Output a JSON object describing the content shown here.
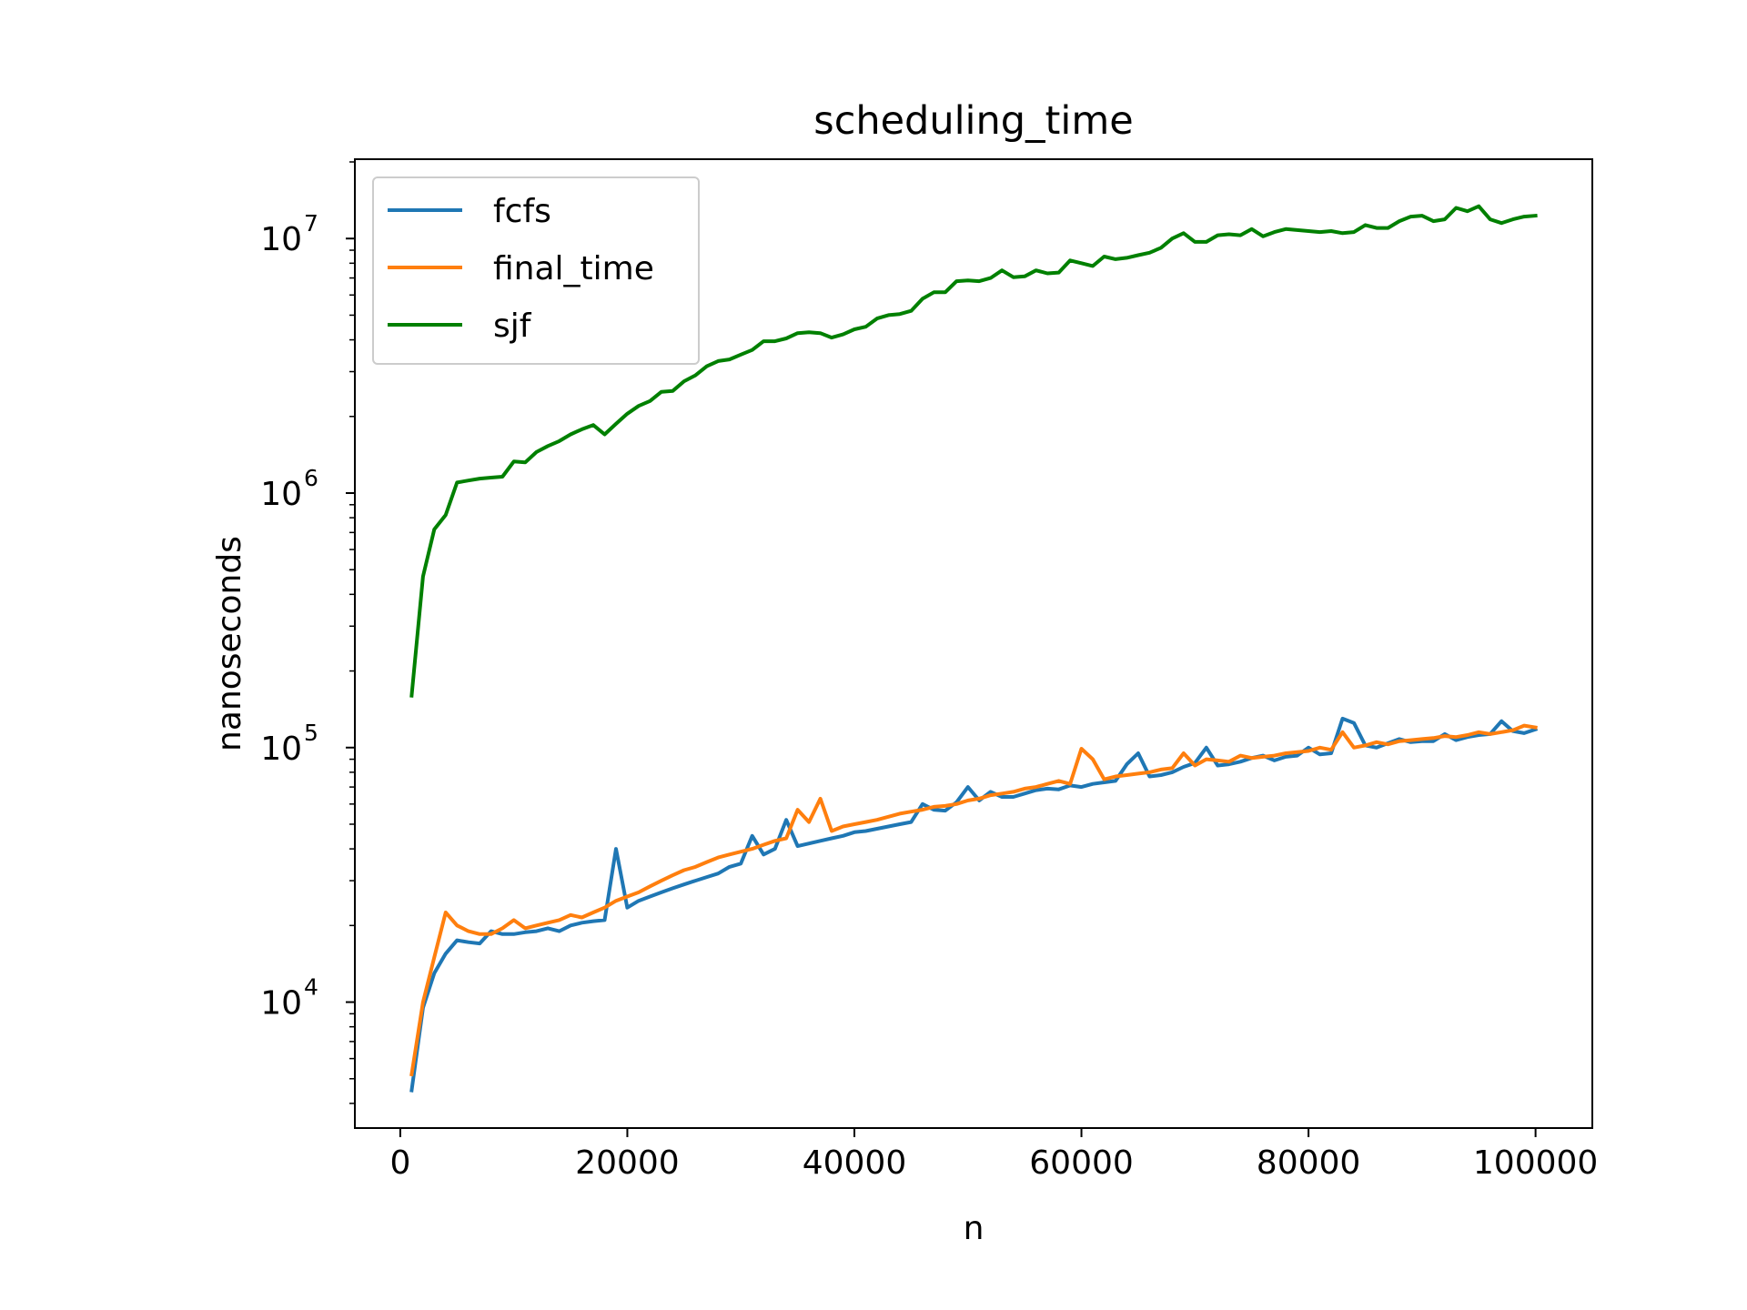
{
  "chart_data": {
    "type": "line",
    "title": "scheduling_time",
    "xlabel": "n",
    "ylabel": "nanoseconds",
    "yscale": "log",
    "xlim": [
      -4000,
      105000
    ],
    "ylim": [
      3200,
      20500000
    ],
    "grid": false,
    "legend_position": "top-left",
    "x_ticks": [
      {
        "value": 0,
        "label": "0"
      },
      {
        "value": 20000,
        "label": "20000"
      },
      {
        "value": 40000,
        "label": "40000"
      },
      {
        "value": 60000,
        "label": "60000"
      },
      {
        "value": 80000,
        "label": "80000"
      },
      {
        "value": 100000,
        "label": "100000"
      }
    ],
    "y_ticks": [
      {
        "value": 10000,
        "base": "10",
        "exp": "4"
      },
      {
        "value": 100000,
        "base": "10",
        "exp": "5"
      },
      {
        "value": 1000000,
        "base": "10",
        "exp": "6"
      },
      {
        "value": 10000000,
        "base": "10",
        "exp": "7"
      }
    ],
    "x": [
      1000,
      2000,
      3000,
      4000,
      5000,
      6000,
      7000,
      8000,
      9000,
      10000,
      11000,
      12000,
      13000,
      14000,
      15000,
      16000,
      17000,
      18000,
      19000,
      20000,
      21000,
      22000,
      23000,
      24000,
      25000,
      26000,
      27000,
      28000,
      29000,
      30000,
      31000,
      32000,
      33000,
      34000,
      35000,
      36000,
      37000,
      38000,
      39000,
      40000,
      41000,
      42000,
      43000,
      44000,
      45000,
      46000,
      47000,
      48000,
      49000,
      50000,
      51000,
      52000,
      53000,
      54000,
      55000,
      56000,
      57000,
      58000,
      59000,
      60000,
      61000,
      62000,
      63000,
      64000,
      65000,
      66000,
      67000,
      68000,
      69000,
      70000,
      71000,
      72000,
      73000,
      74000,
      75000,
      76000,
      77000,
      78000,
      79000,
      80000,
      81000,
      82000,
      83000,
      84000,
      85000,
      86000,
      87000,
      88000,
      89000,
      90000,
      91000,
      92000,
      93000,
      94000,
      95000,
      96000,
      97000,
      98000,
      99000,
      100000
    ],
    "series": [
      {
        "name": "fcfs",
        "color": "#1f77b4",
        "values": [
          4500,
          9500,
          13000,
          15500,
          17500,
          17200,
          17000,
          19000,
          18500,
          18500,
          18800,
          19000,
          19500,
          19000,
          20000,
          20500,
          20800,
          21000,
          40000,
          23500,
          25000,
          26000,
          27000,
          28000,
          29000,
          30000,
          31000,
          32000,
          34000,
          35000,
          45000,
          38000,
          40000,
          52000,
          41000,
          42000,
          43000,
          44000,
          45000,
          46500,
          47000,
          48000,
          49000,
          50000,
          51000,
          60000,
          57000,
          56500,
          61000,
          70000,
          62000,
          67000,
          64000,
          64000,
          66000,
          68000,
          69000,
          68500,
          71000,
          70000,
          72000,
          73000,
          74000,
          86000,
          95000,
          77000,
          78000,
          80000,
          84000,
          87000,
          100000,
          85000,
          86000,
          88000,
          91000,
          93000,
          89000,
          92000,
          93000,
          100000,
          94000,
          95000,
          130000,
          125000,
          102000,
          100000,
          104000,
          108000,
          105000,
          106000,
          106000,
          113000,
          107000,
          110000,
          112000,
          113000,
          127000,
          116000,
          114000,
          118000
        ]
      },
      {
        "name": "final_time",
        "color": "#ff7f0e",
        "values": [
          5200,
          10000,
          15000,
          22500,
          20000,
          19000,
          18500,
          18500,
          19500,
          21000,
          19500,
          20000,
          20500,
          21000,
          22000,
          21500,
          22500,
          23500,
          25000,
          26000,
          27000,
          28500,
          30000,
          31500,
          33000,
          34000,
          35500,
          37000,
          38000,
          39000,
          40000,
          41500,
          43000,
          44000,
          57000,
          51000,
          63000,
          47000,
          49000,
          50000,
          51000,
          52000,
          53500,
          55000,
          56000,
          57000,
          58500,
          59000,
          60000,
          62000,
          63000,
          65000,
          66000,
          67000,
          69000,
          70000,
          72000,
          74000,
          72000,
          99000,
          90000,
          75000,
          77000,
          78000,
          79000,
          80000,
          82000,
          83000,
          95000,
          85000,
          90000,
          89000,
          88000,
          93000,
          91000,
          92000,
          93000,
          95000,
          96000,
          97000,
          100000,
          98000,
          115000,
          100000,
          102000,
          105000,
          103000,
          106000,
          107000,
          108000,
          109000,
          111000,
          110000,
          112000,
          115000,
          113000,
          115000,
          117000,
          122000,
          120000
        ]
      },
      {
        "name": "sjf",
        "color": "#008000",
        "values": [
          160000,
          470000,
          720000,
          820000,
          1100000,
          1120000,
          1140000,
          1150000,
          1160000,
          1330000,
          1320000,
          1450000,
          1530000,
          1600000,
          1700000,
          1780000,
          1850000,
          1700000,
          1870000,
          2050000,
          2200000,
          2300000,
          2500000,
          2520000,
          2750000,
          2900000,
          3150000,
          3300000,
          3350000,
          3500000,
          3650000,
          3950000,
          3950000,
          4050000,
          4250000,
          4280000,
          4250000,
          4080000,
          4200000,
          4400000,
          4500000,
          4850000,
          5000000,
          5050000,
          5200000,
          5800000,
          6150000,
          6150000,
          6800000,
          6850000,
          6800000,
          7000000,
          7500000,
          7050000,
          7100000,
          7500000,
          7300000,
          7350000,
          8200000,
          8000000,
          7800000,
          8500000,
          8300000,
          8400000,
          8600000,
          8800000,
          9200000,
          10000000,
          10500000,
          9700000,
          9700000,
          10300000,
          10400000,
          10300000,
          10900000,
          10200000,
          10600000,
          10900000,
          10800000,
          10700000,
          10600000,
          10700000,
          10500000,
          10600000,
          11300000,
          11000000,
          11000000,
          11700000,
          12200000,
          12300000,
          11700000,
          11900000,
          13200000,
          12800000,
          13400000,
          11900000,
          11500000,
          11900000,
          12200000,
          12300000
        ]
      }
    ]
  }
}
